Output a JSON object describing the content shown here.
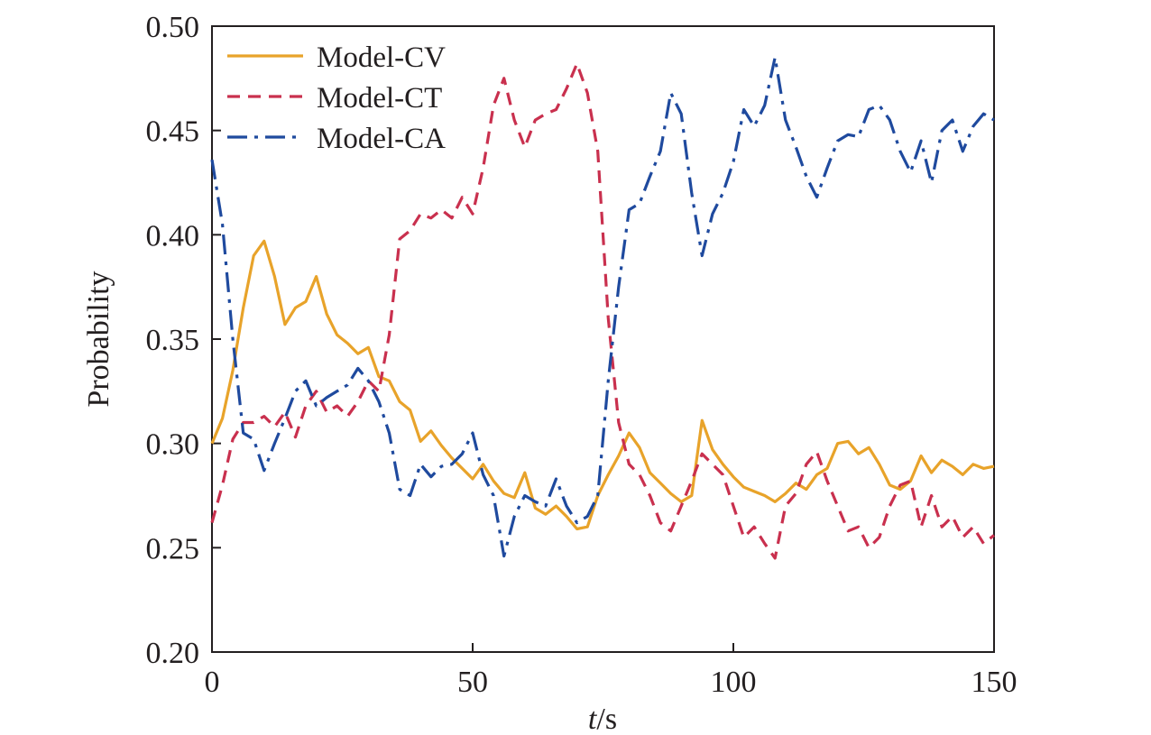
{
  "chart_data": {
    "type": "line",
    "xlabel_italic": "t",
    "xlabel_unit": "/s",
    "ylabel": "Probability",
    "xlim": [
      0,
      150
    ],
    "ylim": [
      0.2,
      0.5
    ],
    "xticks": [
      0,
      50,
      100,
      150
    ],
    "yticks": [
      "0.20",
      "0.25",
      "0.30",
      "0.35",
      "0.40",
      "0.45",
      "0.50"
    ],
    "grid": false,
    "legend_position": "top-left",
    "series": [
      {
        "name": "Model-CV",
        "color": "#E8A32A",
        "dash": "solid",
        "x": [
          0,
          2,
          4,
          6,
          8,
          10,
          12,
          14,
          16,
          18,
          20,
          22,
          24,
          26,
          28,
          30,
          32,
          34,
          36,
          38,
          40,
          42,
          44,
          46,
          48,
          50,
          52,
          54,
          56,
          58,
          60,
          62,
          64,
          66,
          68,
          70,
          72,
          74,
          76,
          78,
          80,
          82,
          84,
          86,
          88,
          90,
          92,
          94,
          96,
          98,
          100,
          102,
          104,
          106,
          108,
          110,
          112,
          114,
          116,
          118,
          120,
          122,
          124,
          126,
          128,
          130,
          132,
          134,
          136,
          138,
          140,
          142,
          144,
          146,
          148,
          150
        ],
        "y": [
          0.3,
          0.312,
          0.335,
          0.365,
          0.39,
          0.397,
          0.38,
          0.357,
          0.365,
          0.368,
          0.38,
          0.362,
          0.352,
          0.348,
          0.343,
          0.346,
          0.332,
          0.33,
          0.32,
          0.316,
          0.301,
          0.306,
          0.299,
          0.293,
          0.288,
          0.283,
          0.29,
          0.282,
          0.276,
          0.274,
          0.286,
          0.269,
          0.266,
          0.27,
          0.265,
          0.259,
          0.26,
          0.275,
          0.285,
          0.294,
          0.305,
          0.298,
          0.286,
          0.281,
          0.276,
          0.272,
          0.275,
          0.311,
          0.297,
          0.29,
          0.284,
          0.279,
          0.277,
          0.275,
          0.272,
          0.276,
          0.281,
          0.278,
          0.285,
          0.288,
          0.3,
          0.301,
          0.295,
          0.298,
          0.29,
          0.28,
          0.278,
          0.282,
          0.294,
          0.286,
          0.292,
          0.289,
          0.285,
          0.29,
          0.288,
          0.289
        ]
      },
      {
        "name": "Model-CT",
        "color": "#C9304E",
        "dash": "dashed",
        "x": [
          0,
          2,
          4,
          6,
          8,
          10,
          12,
          14,
          16,
          18,
          20,
          22,
          24,
          26,
          28,
          30,
          32,
          34,
          36,
          38,
          40,
          42,
          44,
          46,
          48,
          50,
          52,
          54,
          56,
          58,
          60,
          62,
          64,
          66,
          68,
          70,
          72,
          74,
          76,
          78,
          80,
          82,
          84,
          86,
          88,
          90,
          92,
          94,
          96,
          98,
          100,
          102,
          104,
          106,
          108,
          110,
          112,
          114,
          116,
          118,
          120,
          122,
          124,
          126,
          128,
          130,
          132,
          134,
          136,
          138,
          140,
          142,
          144,
          146,
          148,
          150
        ],
        "y": [
          0.262,
          0.28,
          0.302,
          0.31,
          0.31,
          0.313,
          0.308,
          0.315,
          0.303,
          0.318,
          0.325,
          0.315,
          0.318,
          0.313,
          0.32,
          0.33,
          0.325,
          0.352,
          0.398,
          0.402,
          0.41,
          0.408,
          0.412,
          0.408,
          0.418,
          0.41,
          0.432,
          0.462,
          0.475,
          0.455,
          0.442,
          0.455,
          0.458,
          0.46,
          0.47,
          0.482,
          0.468,
          0.44,
          0.36,
          0.31,
          0.29,
          0.285,
          0.275,
          0.262,
          0.258,
          0.27,
          0.282,
          0.295,
          0.29,
          0.285,
          0.27,
          0.255,
          0.26,
          0.252,
          0.245,
          0.27,
          0.276,
          0.29,
          0.296,
          0.282,
          0.27,
          0.258,
          0.26,
          0.25,
          0.255,
          0.27,
          0.28,
          0.282,
          0.26,
          0.275,
          0.26,
          0.265,
          0.255,
          0.26,
          0.252,
          0.256
        ]
      },
      {
        "name": "Model-CA",
        "color": "#1F4A9E",
        "dash": "dashdot",
        "x": [
          0,
          2,
          4,
          6,
          8,
          10,
          12,
          14,
          16,
          18,
          20,
          22,
          24,
          26,
          28,
          30,
          32,
          34,
          36,
          38,
          40,
          42,
          44,
          46,
          48,
          50,
          52,
          54,
          56,
          58,
          60,
          62,
          64,
          66,
          68,
          70,
          72,
          74,
          76,
          78,
          80,
          82,
          84,
          86,
          88,
          90,
          92,
          94,
          96,
          98,
          100,
          102,
          104,
          106,
          108,
          110,
          112,
          114,
          116,
          118,
          120,
          122,
          124,
          126,
          128,
          130,
          132,
          134,
          136,
          138,
          140,
          142,
          144,
          146,
          148,
          150
        ],
        "y": [
          0.436,
          0.405,
          0.35,
          0.305,
          0.302,
          0.287,
          0.3,
          0.312,
          0.325,
          0.33,
          0.318,
          0.322,
          0.325,
          0.328,
          0.336,
          0.33,
          0.32,
          0.305,
          0.278,
          0.275,
          0.29,
          0.284,
          0.289,
          0.29,
          0.295,
          0.305,
          0.285,
          0.275,
          0.246,
          0.265,
          0.275,
          0.272,
          0.27,
          0.283,
          0.27,
          0.262,
          0.265,
          0.275,
          0.33,
          0.375,
          0.412,
          0.415,
          0.428,
          0.44,
          0.468,
          0.458,
          0.42,
          0.39,
          0.41,
          0.42,
          0.435,
          0.46,
          0.452,
          0.462,
          0.485,
          0.455,
          0.442,
          0.428,
          0.418,
          0.432,
          0.445,
          0.448,
          0.447,
          0.46,
          0.462,
          0.455,
          0.44,
          0.43,
          0.445,
          0.425,
          0.45,
          0.455,
          0.44,
          0.452,
          0.458,
          0.455
        ]
      }
    ]
  }
}
